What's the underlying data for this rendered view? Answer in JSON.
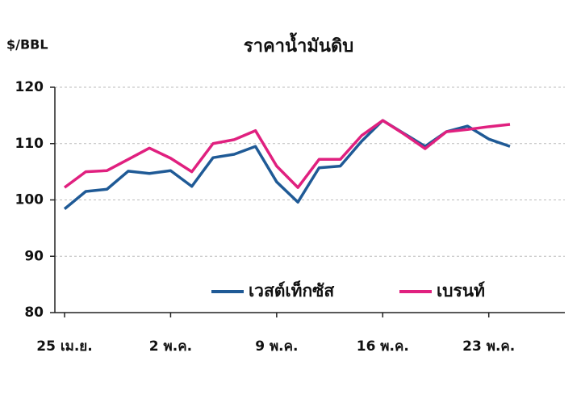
{
  "chart_data": {
    "type": "line",
    "title": "ราคาน้ำมันดิบ",
    "y_label": "$/BBL",
    "categories": [
      "25 เม.ย.",
      null,
      null,
      null,
      null,
      "2 พ.ค.",
      null,
      null,
      null,
      null,
      "9 พ.ค.",
      null,
      null,
      null,
      null,
      "16 พ.ค.",
      null,
      null,
      null,
      null,
      "23 พ.ค.",
      null
    ],
    "series": [
      {
        "name": "เวสต์เท็กซัส",
        "color": "#1f5a96",
        "values": [
          98.4,
          101.5,
          101.9,
          105.1,
          104.7,
          105.2,
          102.4,
          107.5,
          108.1,
          109.5,
          103.2,
          99.6,
          105.7,
          106.0,
          110.4,
          114.1,
          111.8,
          109.5,
          112.1,
          113.1,
          110.8,
          109.5
        ]
      },
      {
        "name": "เบรนท์",
        "color": "#e0207f",
        "values": [
          102.2,
          105.0,
          105.2,
          107.2,
          109.2,
          107.4,
          105.0,
          110.0,
          110.7,
          112.3,
          106.0,
          102.2,
          107.2,
          107.2,
          111.4,
          114.1,
          111.7,
          109.1,
          112.1,
          112.5,
          113.0,
          113.4
        ]
      }
    ],
    "ylim": [
      80,
      120
    ],
    "yticks": [
      80,
      90,
      100,
      110,
      120
    ],
    "grid": true,
    "legend": "lower-right"
  }
}
